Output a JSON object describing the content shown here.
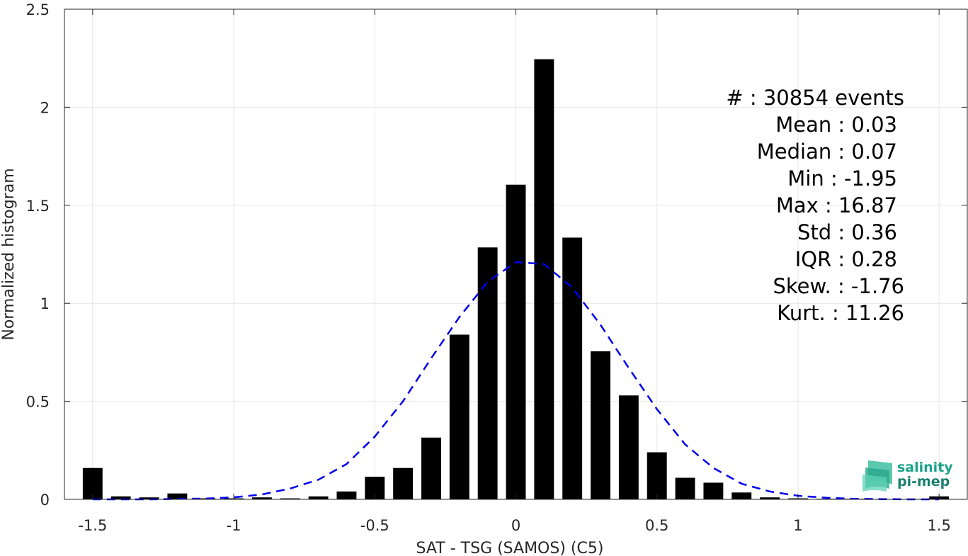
{
  "chart_data": {
    "type": "bar",
    "xlabel": "SAT - TSG (SAMOS) (C5)",
    "ylabel": "Normalized histogram",
    "xlim": [
      -1.6,
      1.6
    ],
    "ylim": [
      0,
      2.5
    ],
    "xticks": [
      -1.5,
      -1,
      -0.5,
      0,
      0.5,
      1,
      1.5
    ],
    "xtick_labels": [
      "-1.5",
      "-1",
      "-0.5",
      "0",
      "0.5",
      "1",
      "1.5"
    ],
    "yticks": [
      0,
      0.5,
      1,
      1.5,
      2,
      2.5
    ],
    "ytick_labels": [
      "0",
      "0.5",
      "1",
      "1.5",
      "2",
      "2.5"
    ],
    "grid": true,
    "bar_color": "#000000",
    "bins": [
      {
        "x": -1.5,
        "value": 0.16
      },
      {
        "x": -1.4,
        "value": 0.015
      },
      {
        "x": -1.3,
        "value": 0.01
      },
      {
        "x": -1.2,
        "value": 0.03
      },
      {
        "x": -1.1,
        "value": 0.005
      },
      {
        "x": -1.0,
        "value": 0.005
      },
      {
        "x": -0.9,
        "value": 0.01
      },
      {
        "x": -0.8,
        "value": 0.005
      },
      {
        "x": -0.7,
        "value": 0.015
      },
      {
        "x": -0.6,
        "value": 0.04
      },
      {
        "x": -0.5,
        "value": 0.115
      },
      {
        "x": -0.4,
        "value": 0.16
      },
      {
        "x": -0.3,
        "value": 0.315
      },
      {
        "x": -0.2,
        "value": 0.84
      },
      {
        "x": -0.1,
        "value": 1.285
      },
      {
        "x": 0.0,
        "value": 1.605
      },
      {
        "x": 0.1,
        "value": 2.245
      },
      {
        "x": 0.2,
        "value": 1.335
      },
      {
        "x": 0.3,
        "value": 0.755
      },
      {
        "x": 0.4,
        "value": 0.53
      },
      {
        "x": 0.5,
        "value": 0.24
      },
      {
        "x": 0.6,
        "value": 0.11
      },
      {
        "x": 0.7,
        "value": 0.085
      },
      {
        "x": 0.8,
        "value": 0.035
      },
      {
        "x": 0.9,
        "value": 0.01
      },
      {
        "x": 1.0,
        "value": 0.005
      },
      {
        "x": 1.1,
        "value": 0.003
      },
      {
        "x": 1.2,
        "value": 0.003
      },
      {
        "x": 1.3,
        "value": 0.002
      },
      {
        "x": 1.4,
        "value": 0.002
      },
      {
        "x": 1.5,
        "value": 0.015
      }
    ],
    "fit_curve": {
      "style": "dashed",
      "color": "#0000ee",
      "points": [
        [
          -1.5,
          0.0
        ],
        [
          -1.4,
          0.0
        ],
        [
          -1.3,
          0.0
        ],
        [
          -1.2,
          0.002
        ],
        [
          -1.1,
          0.004
        ],
        [
          -1.0,
          0.01
        ],
        [
          -0.9,
          0.025
        ],
        [
          -0.8,
          0.055
        ],
        [
          -0.7,
          0.1
        ],
        [
          -0.6,
          0.18
        ],
        [
          -0.5,
          0.32
        ],
        [
          -0.4,
          0.5
        ],
        [
          -0.3,
          0.72
        ],
        [
          -0.2,
          0.93
        ],
        [
          -0.1,
          1.11
        ],
        [
          0.0,
          1.21
        ],
        [
          0.1,
          1.2
        ],
        [
          0.2,
          1.08
        ],
        [
          0.3,
          0.89
        ],
        [
          0.4,
          0.67
        ],
        [
          0.5,
          0.46
        ],
        [
          0.6,
          0.28
        ],
        [
          0.7,
          0.16
        ],
        [
          0.8,
          0.08
        ],
        [
          0.9,
          0.04
        ],
        [
          1.0,
          0.018
        ],
        [
          1.1,
          0.008
        ],
        [
          1.2,
          0.003
        ],
        [
          1.3,
          0.001
        ],
        [
          1.4,
          0.0
        ],
        [
          1.5,
          0.0
        ]
      ]
    },
    "annotations": [
      "#  : 30854 events",
      "Mean : 0.03",
      "Median : 0.07",
      "Min : -1.95",
      "Max : 16.87",
      "Std : 0.36",
      "IQR : 0.28",
      "Skew. : -1.76",
      "Kurt. : 11.26"
    ]
  },
  "logo": {
    "line1": "salinity",
    "line2": "pi-mep",
    "color": "#1aa38a"
  }
}
